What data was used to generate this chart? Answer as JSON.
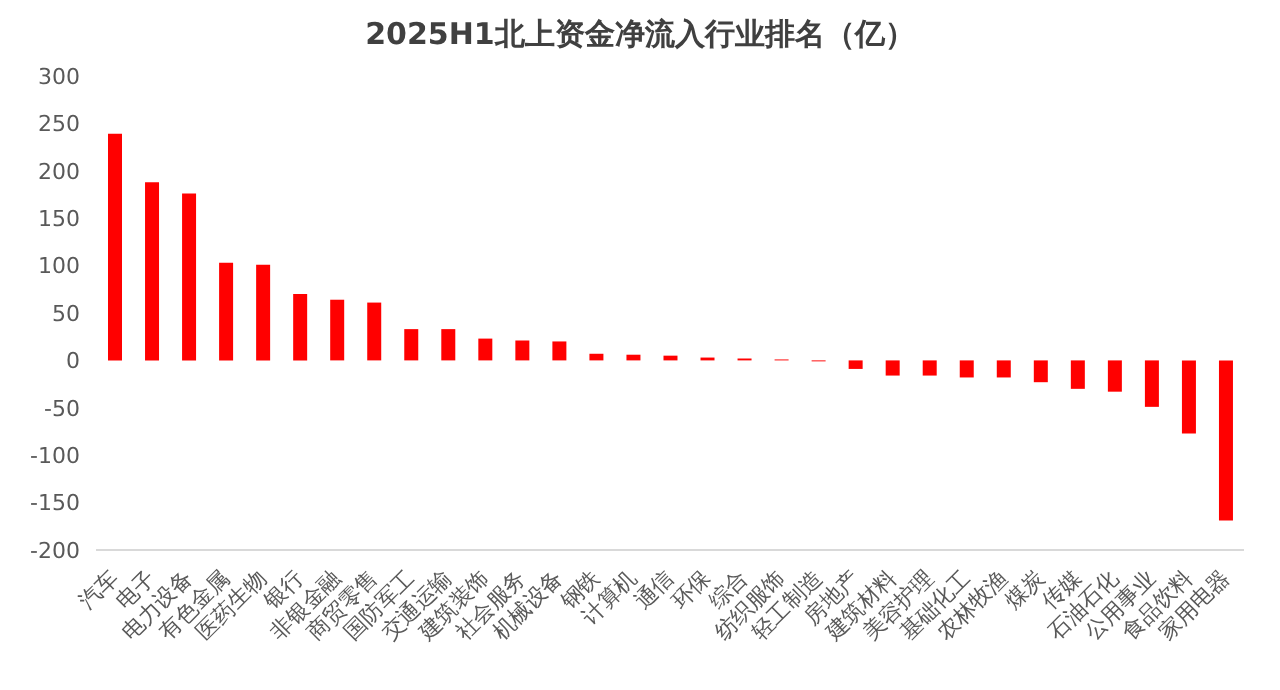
{
  "chart_data": {
    "type": "bar",
    "title": "2025H1北上资金净流入行业排名（亿）",
    "categories": [
      "汽车",
      "电子",
      "电力设备",
      "有色金属",
      "医药生物",
      "银行",
      "非银金融",
      "商贸零售",
      "国防军工",
      "交通运输",
      "建筑装饰",
      "社会服务",
      "机械设备",
      "钢铁",
      "计算机",
      "通信",
      "环保",
      "综合",
      "纺织服饰",
      "轻工制造",
      "房地产",
      "建筑材料",
      "美容护理",
      "基础化工",
      "农林牧渔",
      "煤炭",
      "传媒",
      "石油石化",
      "公用事业",
      "食品饮料",
      "家用电器"
    ],
    "values": [
      239,
      188,
      176,
      103,
      101,
      70,
      64,
      61,
      33,
      33,
      23,
      21,
      20,
      7,
      6,
      5,
      3,
      2,
      1,
      -1,
      -9,
      -16,
      -16,
      -18,
      -18,
      -23,
      -30,
      -33,
      -49,
      -77,
      -169
    ],
    "color": "#ff0000",
    "ylim": [
      -200,
      300
    ],
    "yticks": [
      -200,
      -150,
      -100,
      -50,
      0,
      50,
      100,
      150,
      200,
      250,
      300
    ],
    "grid": false
  }
}
